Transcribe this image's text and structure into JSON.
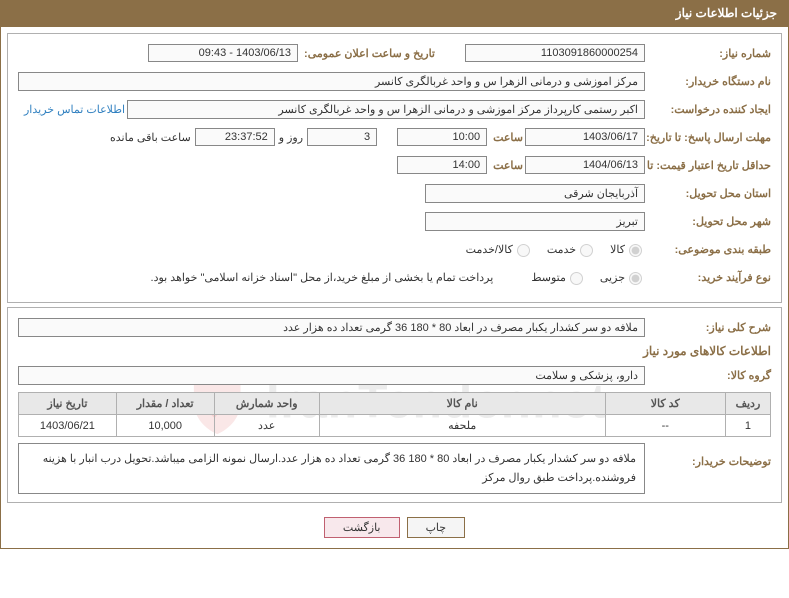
{
  "colors": {
    "header_bg": "#8b6f47",
    "border": "#b0b0b0",
    "label": "#8b6f47",
    "link": "#3080c0"
  },
  "panel": {
    "title": "جزئیات اطلاعات نیاز"
  },
  "labels": {
    "need_no": "شماره نیاز:",
    "announce_dt": "تاریخ و ساعت اعلان عمومی:",
    "buyer_org": "نام دستگاه خریدار:",
    "requester": "ایجاد کننده درخواست:",
    "contact_link": "اطلاعات تماس خریدار",
    "response_deadline": "مهلت ارسال پاسخ: تا تاریخ:",
    "hour": "ساعت",
    "day_and": "روز و",
    "remaining": "ساعت باقی مانده",
    "price_validity": "حداقل تاریخ اعتبار قیمت: تا تاریخ:",
    "delivery_province": "استان محل تحویل:",
    "delivery_city": "شهر محل تحویل:",
    "subject_class": "طبقه بندی موضوعی:",
    "purchase_type": "نوع فرآیند خرید:",
    "need_desc": "شرح کلی نیاز:",
    "items_section": "اطلاعات کالاهای مورد نیاز",
    "item_group": "گروه کالا:",
    "buyer_notes": "توضیحات خریدار:"
  },
  "values": {
    "need_no": "1103091860000254",
    "announce_dt": "1403/06/13 - 09:43",
    "buyer_org": "مرکز اموزشی و درمانی الزهرا س  و واحد غربالگری کانسر",
    "requester": "اکبر رستمی کارپرداز مرکز اموزشی و درمانی الزهرا س  و واحد غربالگری کانسر",
    "resp_date": "1403/06/17",
    "resp_time": "10:00",
    "resp_days": "3",
    "resp_clock": "23:37:52",
    "valid_date": "1404/06/13",
    "valid_time": "14:00",
    "province": "آذربایجان شرقی",
    "city": "تبریز",
    "payment_note": "پرداخت تمام یا بخشی از مبلغ خرید،از محل \"اسناد خزانه اسلامی\" خواهد بود.",
    "need_desc": "ملافه دو سر کشدار یکبار مصرف در ابعاد 80 * 180 36 گرمی تعداد ده هزار عدد",
    "item_group": "دارو، پزشکی و سلامت",
    "buyer_notes": "ملافه دو سر کشدار یکبار مصرف در ابعاد 80 * 180 36 گرمی تعداد ده هزار عدد.ارسال نمونه الزامی میباشد.تحویل درب انبار با هزینه فروشنده.پرداخت طبق روال مرکز"
  },
  "radios": {
    "subject": {
      "options": [
        "کالا",
        "خدمت",
        "کالا/خدمت"
      ],
      "selected": 0
    },
    "purchase": {
      "options": [
        "جزیی",
        "متوسط"
      ],
      "selected": 0
    }
  },
  "table": {
    "headers": [
      "ردیف",
      "کد کالا",
      "نام کالا",
      "واحد شمارش",
      "تعداد / مقدار",
      "تاریخ نیاز"
    ],
    "col_widths": [
      "6%",
      "16%",
      "38%",
      "14%",
      "13%",
      "13%"
    ],
    "rows": [
      {
        "idx": "1",
        "code": "--",
        "name": "ملحفه",
        "unit": "عدد",
        "qty": "10,000",
        "date": "1403/06/21"
      }
    ]
  },
  "buttons": {
    "print": "چاپ",
    "back": "بازگشت"
  },
  "watermark": "IranTender.net"
}
